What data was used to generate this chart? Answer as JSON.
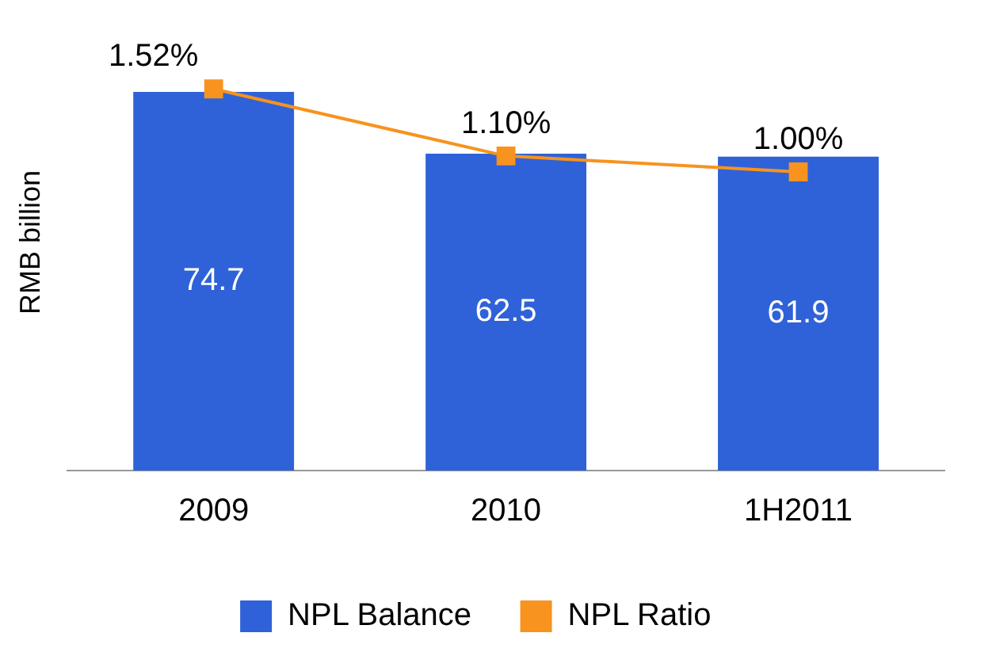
{
  "chart_data": {
    "type": "bar",
    "ylabel": "RMB billion",
    "categories": [
      "2009",
      "2010",
      "1H2011"
    ],
    "series": [
      {
        "name": "NPL Balance",
        "color": "#2f62d8",
        "values": [
          74.7,
          62.5,
          61.9
        ],
        "value_labels": [
          "74.7",
          "62.5",
          "61.9"
        ]
      },
      {
        "name": "NPL Ratio",
        "type": "line",
        "axis": "y2",
        "color": "#f7931e",
        "marker": "square",
        "values": [
          1.52,
          1.1,
          1.0
        ],
        "value_labels": [
          "1.52%",
          "1.10%",
          "1.00%"
        ]
      }
    ],
    "legend": "bottom",
    "grid": false
  }
}
